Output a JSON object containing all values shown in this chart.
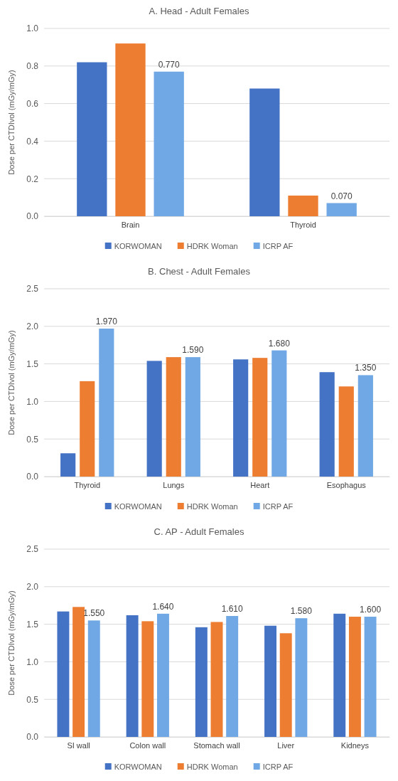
{
  "chart_data": [
    {
      "type": "bar",
      "title": "A. Head - Adult Females",
      "ylabel": "Dose per CTDIvol (mGy/mGy)",
      "categories": [
        "Brain",
        "Thyroid"
      ],
      "ylim": [
        0,
        1
      ],
      "yticks": [
        {
          "value": 0,
          "label": "0.0"
        },
        {
          "value": 0.2,
          "label": "0.2"
        },
        {
          "value": 0.4,
          "label": "0.4"
        },
        {
          "value": 0.6,
          "label": "0.6"
        },
        {
          "value": 0.8,
          "label": "0.8"
        },
        {
          "value": 1,
          "label": "1.0"
        }
      ],
      "grid": "y",
      "legend": "bottom",
      "series": [
        {
          "name": "KORWOMAN",
          "color": "#4472c4",
          "values": [
            0.82,
            0.68
          ]
        },
        {
          "name": "HDRK Woman",
          "color": "#ed7d31",
          "values": [
            0.92,
            0.11
          ]
        },
        {
          "name": "ICRP AF",
          "color": "#6fa8e4",
          "values": [
            0.77,
            0.07
          ],
          "value_labels": [
            "0.770",
            "0.070"
          ]
        }
      ]
    },
    {
      "type": "bar",
      "title": "B. Chest - Adult Females",
      "ylabel": "Dose per CTDIvol (mGy/mGy)",
      "categories": [
        "Thyroid",
        "Lungs",
        "Heart",
        "Esophagus"
      ],
      "ylim": [
        0,
        2.5
      ],
      "yticks": [
        {
          "value": 0,
          "label": "0.0"
        },
        {
          "value": 0.5,
          "label": "0.5"
        },
        {
          "value": 1,
          "label": "1.0"
        },
        {
          "value": 1.5,
          "label": "1.5"
        },
        {
          "value": 2,
          "label": "2.0"
        },
        {
          "value": 2.5,
          "label": "2.5"
        }
      ],
      "grid": "y",
      "legend": "bottom",
      "series": [
        {
          "name": "KORWOMAN",
          "color": "#4472c4",
          "values": [
            0.31,
            1.54,
            1.56,
            1.39
          ]
        },
        {
          "name": "HDRK Woman",
          "color": "#ed7d31",
          "values": [
            1.27,
            1.59,
            1.58,
            1.2
          ]
        },
        {
          "name": "ICRP AF",
          "color": "#6fa8e4",
          "values": [
            1.97,
            1.59,
            1.68,
            1.35
          ],
          "value_labels": [
            "1.970",
            "1.590",
            "1.680",
            "1.350"
          ]
        }
      ]
    },
    {
      "type": "bar",
      "title": "C. AP - Adult Females",
      "ylabel": "Dose per CTDIvol (mGy/mGy)",
      "categories": [
        "SI wall",
        "Colon wall",
        "Stomach wall",
        "Liver",
        "Kidneys"
      ],
      "ylim": [
        0,
        2.5
      ],
      "yticks": [
        {
          "value": 0,
          "label": "0.0"
        },
        {
          "value": 0.5,
          "label": "0.5"
        },
        {
          "value": 1,
          "label": "1.0"
        },
        {
          "value": 1.5,
          "label": "1.5"
        },
        {
          "value": 2,
          "label": "2.0"
        },
        {
          "value": 2.5,
          "label": "2.5"
        }
      ],
      "grid": "y",
      "legend": "bottom",
      "series": [
        {
          "name": "KORWOMAN",
          "color": "#4472c4",
          "values": [
            1.67,
            1.62,
            1.46,
            1.48,
            1.64
          ]
        },
        {
          "name": "HDRK Woman",
          "color": "#ed7d31",
          "values": [
            1.73,
            1.54,
            1.53,
            1.38,
            1.6
          ]
        },
        {
          "name": "ICRP AF",
          "color": "#6fa8e4",
          "values": [
            1.55,
            1.64,
            1.61,
            1.58,
            1.6
          ],
          "value_labels": [
            "1.550",
            "1.640",
            "1.610",
            "1.580",
            "1.600"
          ]
        }
      ]
    }
  ]
}
